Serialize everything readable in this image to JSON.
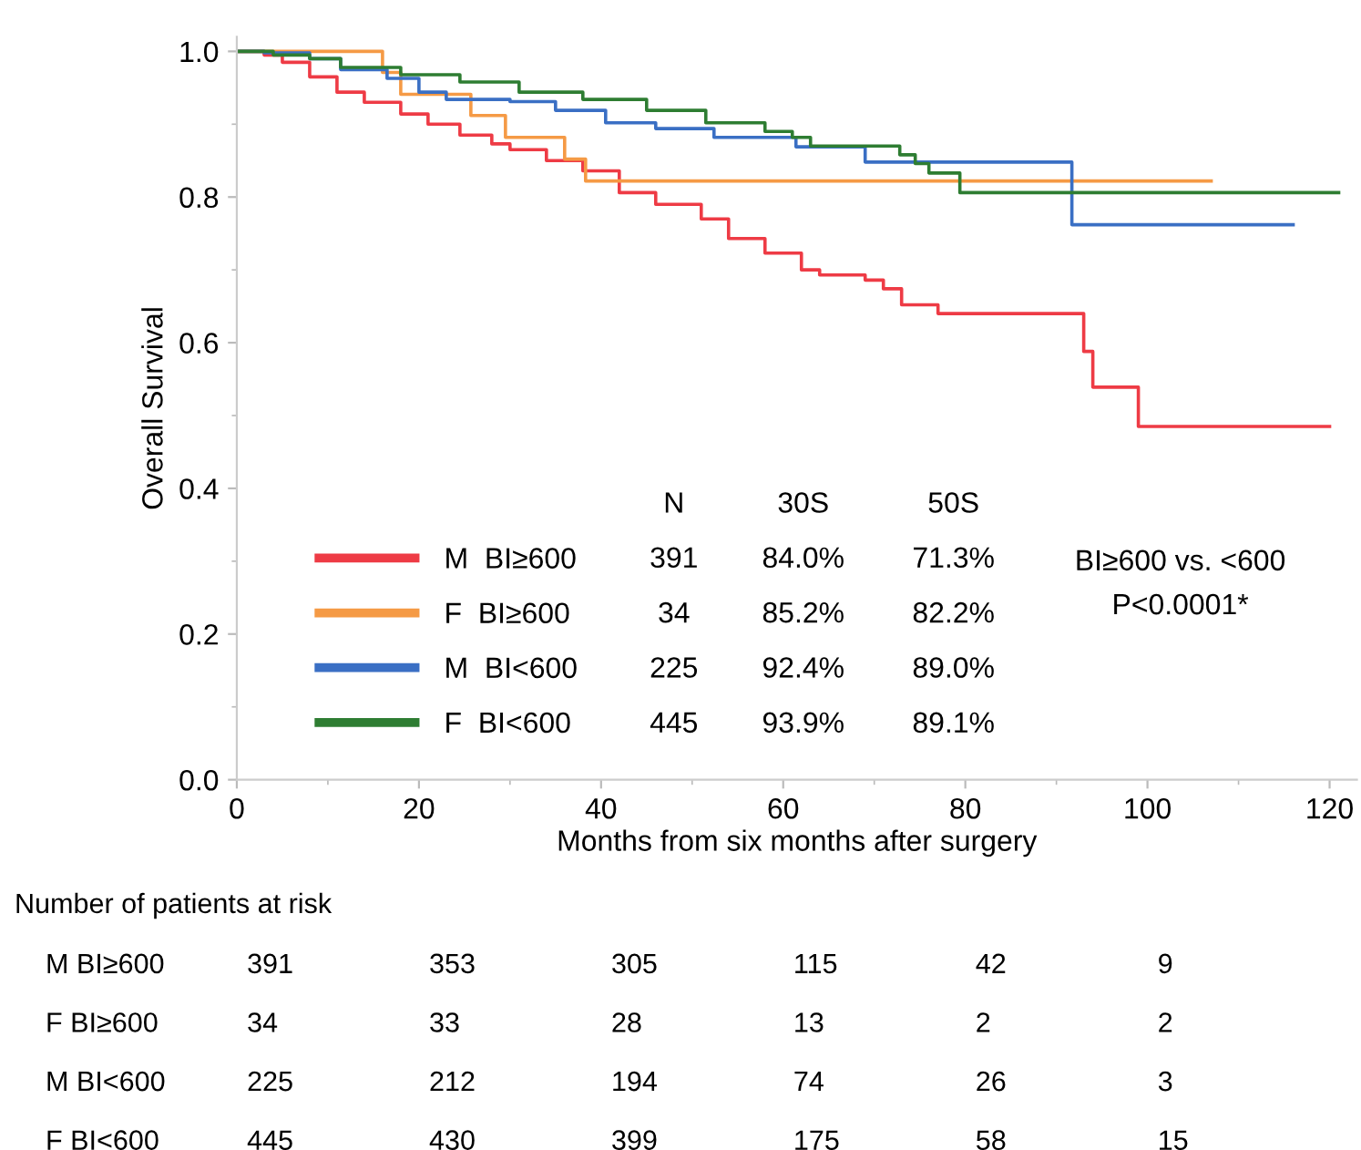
{
  "chart_data": {
    "type": "step",
    "xlabel": "Months from six months after surgery",
    "ylabel": "Overall Survival",
    "xlim": [
      0,
      123
    ],
    "xticks": [
      0,
      20,
      40,
      60,
      80,
      100,
      120
    ],
    "ylim": [
      0,
      1.02
    ],
    "yticks": [
      {
        "value": 0,
        "label": "0.0"
      },
      0.2,
      0.4,
      0.6,
      0.8,
      {
        "value": 1,
        "label": "1.0"
      }
    ],
    "grid": false,
    "legend": "bottom left",
    "marker": "none",
    "line_style": "solid",
    "series": [
      {
        "name": "M  BI≥600",
        "color": "#ee3b45",
        "x": [
          0,
          3,
          5,
          8,
          11,
          14,
          18,
          21,
          24.5,
          28,
          30,
          34,
          38,
          42,
          46,
          51,
          54,
          58,
          62,
          64,
          69,
          71,
          73,
          77,
          93,
          94,
          99,
          120
        ],
        "values": [
          1.0,
          0.995,
          0.985,
          0.965,
          0.944,
          0.93,
          0.914,
          0.9,
          0.885,
          0.873,
          0.865,
          0.85,
          0.836,
          0.806,
          0.79,
          0.77,
          0.743,
          0.723,
          0.7,
          0.693,
          0.686,
          0.674,
          0.652,
          0.64,
          0.588,
          0.539,
          0.485,
          0.485
        ]
      },
      {
        "name": "F  BI≥600",
        "color": "#f59a45",
        "x": [
          0,
          16,
          18,
          25.7,
          29.5,
          36,
          38.3,
          107
        ],
        "values": [
          1.0,
          0.971,
          0.941,
          0.912,
          0.882,
          0.852,
          0.822,
          0.822
        ]
      },
      {
        "name": "M  BI<600",
        "color": "#3a6fc4",
        "x": [
          0,
          3,
          8,
          11.4,
          16.5,
          20,
          23,
          30,
          35,
          40.5,
          46,
          52.4,
          61.4,
          69,
          91.7,
          116
        ],
        "values": [
          1.0,
          0.998,
          0.99,
          0.975,
          0.963,
          0.944,
          0.934,
          0.931,
          0.919,
          0.902,
          0.894,
          0.882,
          0.869,
          0.848,
          0.762,
          0.762
        ]
      },
      {
        "name": "F  BI<600",
        "color": "#2e7d32",
        "x": [
          0,
          4,
          8,
          11.4,
          18,
          24.5,
          31,
          38,
          45,
          51.5,
          58,
          61,
          63,
          72.8,
          74.5,
          76,
          79.4,
          121
        ],
        "values": [
          1.0,
          0.995,
          0.99,
          0.978,
          0.968,
          0.958,
          0.944,
          0.934,
          0.919,
          0.902,
          0.89,
          0.882,
          0.87,
          0.858,
          0.846,
          0.833,
          0.806,
          0.806
        ]
      }
    ],
    "annotations": [
      "N",
      "30S",
      "50S",
      "391",
      "84.0%",
      "71.3%",
      "34",
      "85.2%",
      "82.2%",
      "225",
      "92.4%",
      "89.0%",
      "445",
      "93.9%",
      "89.1%",
      "BI≥600 vs. <600",
      "P<0.0001*",
      "Number of patients at risk",
      "M BI≥600",
      "391",
      "353",
      "305",
      "115",
      "42",
      "9",
      "F BI≥600",
      "34",
      "33",
      "28",
      "13",
      "2",
      "2",
      "M BI<600",
      "225",
      "212",
      "194",
      "74",
      "26",
      "3",
      "F BI<600",
      "445",
      "430",
      "399",
      "175",
      "58",
      "15"
    ]
  }
}
